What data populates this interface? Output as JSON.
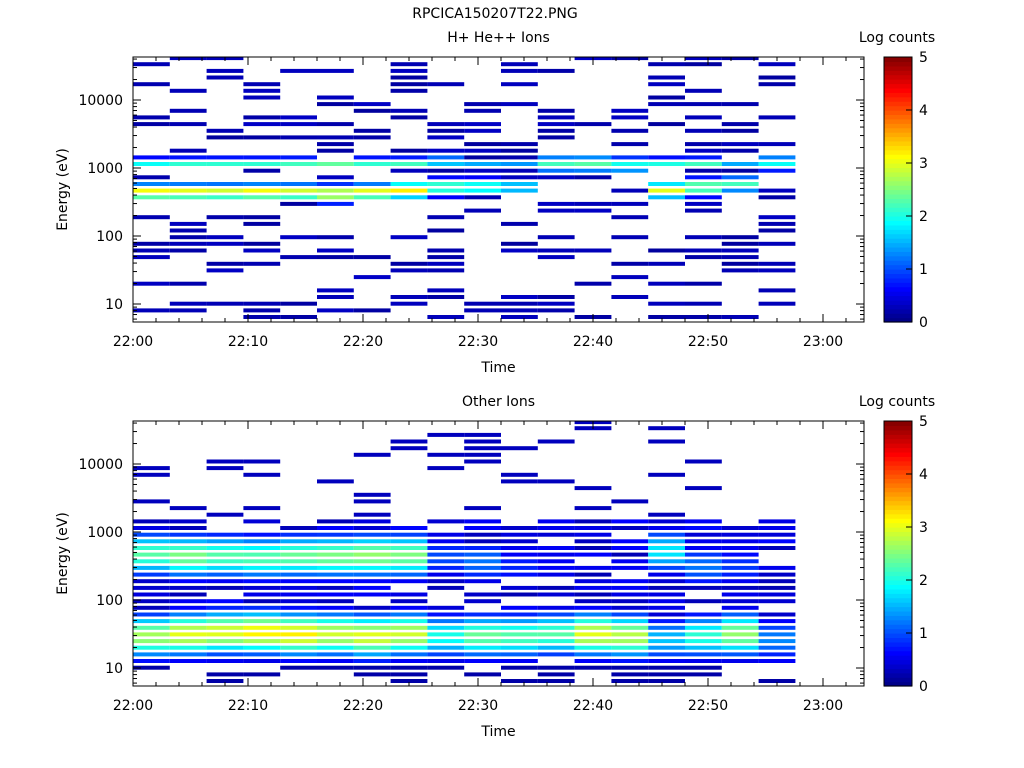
{
  "figure_title": "RPCICA150207T22.PNG",
  "chart_data": [
    {
      "type": "heatmap",
      "title": "H+ He++ Ions",
      "xlabel": "Time",
      "ylabel": "Energy (eV)",
      "x_ticks": [
        "22:00",
        "22:10",
        "22:20",
        "22:30",
        "22:40",
        "22:50",
        "23:00"
      ],
      "y_scale": "log",
      "y_ticks": [
        "10",
        "100",
        "1000",
        "10000"
      ],
      "colorbar": {
        "label": "Log counts",
        "ticks": [
          "0",
          "1",
          "2",
          "3",
          "4",
          "5"
        ],
        "range": [
          0,
          5
        ]
      },
      "grid": false,
      "profile": {
        "main_peak_eV": [
          420,
          420,
          420,
          420,
          420,
          400,
          420,
          450,
          500,
          500,
          500,
          1100,
          1100,
          1050,
          450,
          500,
          550,
          1150
        ],
        "peak_level": [
          3.2,
          3.1,
          3.0,
          3.2,
          3.0,
          3.1,
          3.1,
          3.2,
          2.4,
          2.2,
          1.8,
          2.2,
          2.3,
          2.0,
          3.0,
          2.6,
          2.2,
          1.8
        ],
        "upper_band_eV": [
          1150,
          1150,
          1150,
          1150,
          1150,
          1120,
          1150,
          1150,
          1200,
          1150,
          1150,
          1200,
          1200,
          1150,
          1150,
          1150,
          1150,
          1150
        ],
        "upper_band_level": [
          2.1,
          2.3,
          2.3,
          2.3,
          2.4,
          2.4,
          2.3,
          2.4,
          2.2,
          1.6,
          1.5,
          2.0,
          2.2,
          1.5,
          2.2,
          2.4,
          1.6,
          2.1
        ]
      }
    },
    {
      "type": "heatmap",
      "title": "Other Ions",
      "xlabel": "Time",
      "ylabel": "Energy (eV)",
      "x_ticks": [
        "22:00",
        "22:10",
        "22:20",
        "22:30",
        "22:40",
        "22:50",
        "23:00"
      ],
      "y_scale": "log",
      "y_ticks": [
        "10",
        "100",
        "1000",
        "10000"
      ],
      "colorbar": {
        "label": "Log counts",
        "ticks": [
          "0",
          "1",
          "2",
          "3",
          "4",
          "5"
        ],
        "range": [
          0,
          5
        ]
      },
      "grid": false,
      "profile": {
        "low_peak_eV": [
          28,
          30,
          32,
          32,
          30,
          30,
          28,
          30,
          28,
          28,
          28,
          30,
          30,
          28,
          25,
          28,
          30,
          25
        ],
        "low_peak_level": [
          2.7,
          3.0,
          3.0,
          3.2,
          3.2,
          2.9,
          3.0,
          2.9,
          2.0,
          2.4,
          2.3,
          2.3,
          3.0,
          2.8,
          1.6,
          2.1,
          2.6,
          1.3
        ],
        "mid_peak_eV": [
          450,
          420,
          420,
          400,
          420,
          420,
          430,
          430,
          400,
          350,
          300,
          300,
          200,
          200,
          500,
          300,
          300,
          200
        ],
        "mid_peak_level": [
          2.3,
          2.5,
          2.3,
          2.3,
          2.4,
          2.5,
          2.6,
          2.5,
          1.0,
          1.2,
          0.8,
          0.6,
          0.5,
          0.5,
          1.8,
          1.2,
          0.9,
          0.5
        ]
      }
    }
  ]
}
